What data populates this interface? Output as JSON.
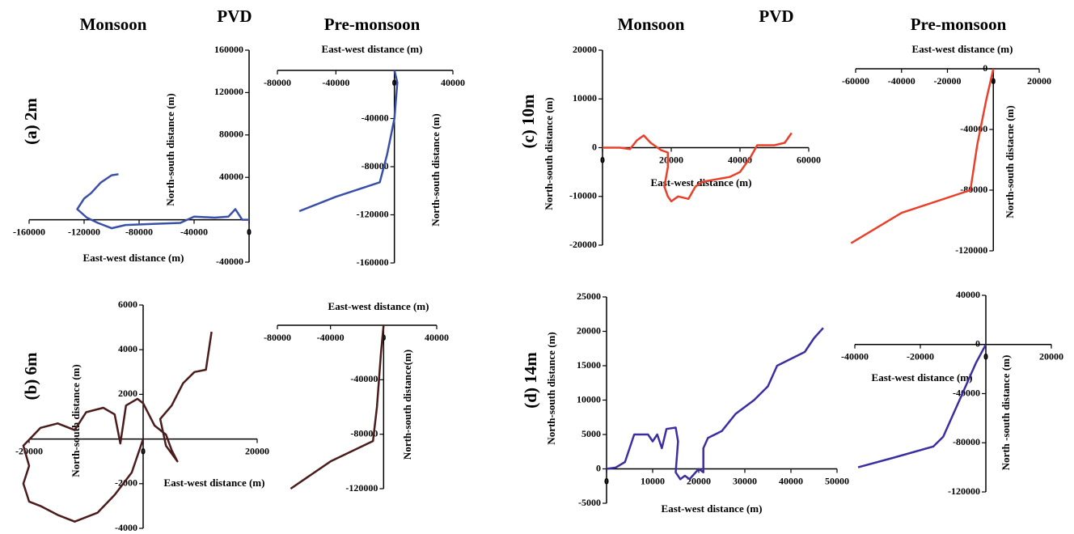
{
  "headers": {
    "left": [
      "Monsoon",
      "PVD",
      "Pre-monsoon"
    ],
    "right": [
      "Monsoon",
      "PVD",
      "Pre-monsoon"
    ]
  },
  "panel_labels": [
    "(a) 2m",
    "(b) 6m",
    "(c) 10m",
    "(d) 14m"
  ],
  "chart_data": [
    {
      "type": "line",
      "xlabel": "East-west distance (m)",
      "ylabel": "North-south distance (m)",
      "color": "#3a4fa8",
      "xlim": [
        -160000,
        0
      ],
      "ylim": [
        -40000,
        160000
      ],
      "xticks": [
        -160000,
        -120000,
        -80000,
        -40000,
        0
      ],
      "yticks": [
        -40000,
        40000,
        80000,
        120000,
        160000
      ],
      "x": [
        0,
        -5000,
        -10000,
        -15000,
        -25000,
        -40000,
        -50000,
        -70000,
        -90000,
        -100000,
        -110000,
        -118000,
        -125000,
        -120000,
        -115000,
        -108000,
        -100000,
        -95000
      ],
      "values": [
        0,
        0,
        10000,
        3000,
        2000,
        3000,
        -3000,
        -4000,
        -5000,
        -8000,
        -3000,
        2000,
        10000,
        20000,
        25000,
        35000,
        42000,
        43000
      ]
    },
    {
      "type": "line",
      "xlabel": "East-west distance (m)",
      "ylabel": "North-south distance (m)",
      "color": "#3a4fa8",
      "xlim": [
        -80000,
        40000
      ],
      "ylim": [
        -160000,
        0
      ],
      "xticks": [
        -80000,
        -40000,
        0,
        40000
      ],
      "yticks": [
        -160000,
        -120000,
        -80000,
        -40000
      ],
      "x": [
        0,
        2000,
        0,
        -5000,
        -10000,
        -40000,
        -65000
      ],
      "values": [
        0,
        -10000,
        -40000,
        -70000,
        -93000,
        -105000,
        -117000
      ]
    },
    {
      "type": "line",
      "xlabel": "East-west distance (m)",
      "ylabel": "North-south distance (m)",
      "color": "#4a1c1c",
      "xlim": [
        -20000,
        20000
      ],
      "ylim": [
        -4000,
        6000
      ],
      "xticks": [
        -20000,
        0,
        20000
      ],
      "yticks": [
        -4000,
        -2000,
        2000,
        4000,
        6000
      ],
      "x": [
        0,
        -2000,
        -5000,
        -8000,
        -12000,
        -15000,
        -18000,
        -20000,
        -21000,
        -20000,
        -21000,
        -18000,
        -15000,
        -12000,
        -10000,
        -7000,
        -5000,
        -4000,
        -3000,
        -1000,
        0,
        2000,
        4000,
        5000,
        6000,
        4000,
        3000,
        5000,
        7000,
        9000,
        11000,
        12000
      ],
      "values": [
        0,
        -1500,
        -2500,
        -3300,
        -3700,
        -3400,
        -3000,
        -2800,
        -2000,
        -1200,
        -300,
        500,
        700,
        400,
        1200,
        1400,
        1100,
        -200,
        1500,
        1800,
        1600,
        600,
        200,
        -500,
        -1000,
        -300,
        900,
        1500,
        2500,
        3000,
        3100,
        4800
      ]
    },
    {
      "type": "line",
      "xlabel": "East-west distance (m)",
      "ylabel": "North-south distance(m)",
      "color": "#4a1c1c",
      "xlim": [
        -80000,
        40000
      ],
      "ylim": [
        -120000,
        0
      ],
      "xticks": [
        -80000,
        -40000,
        0,
        40000
      ],
      "yticks": [
        -120000,
        -80000,
        -40000
      ],
      "x": [
        0,
        -2000,
        -5000,
        -8000,
        -40000,
        -70000
      ],
      "values": [
        0,
        -20000,
        -60000,
        -85000,
        -100000,
        -120000
      ]
    },
    {
      "type": "line",
      "xlabel": "East-west distance (m)",
      "ylabel": "North-south distance (m)",
      "color": "#e8402a",
      "xlim": [
        0,
        60000
      ],
      "ylim": [
        -20000,
        20000
      ],
      "xticks": [
        0,
        20000,
        40000,
        60000
      ],
      "yticks": [
        -20000,
        -10000,
        0,
        10000,
        20000
      ],
      "x": [
        0,
        5000,
        8000,
        10000,
        12000,
        14000,
        17000,
        19000,
        19000,
        18000,
        19000,
        20000,
        22000,
        25000,
        27000,
        29000,
        33000,
        37000,
        40000,
        43000,
        45000,
        50000,
        53000,
        55000
      ],
      "values": [
        0,
        0,
        -300,
        1500,
        2500,
        1000,
        -500,
        -1000,
        -4000,
        -8000,
        -10000,
        -11000,
        -10000,
        -10500,
        -8000,
        -7000,
        -6500,
        -6000,
        -5000,
        -2000,
        500,
        500,
        1000,
        3000
      ]
    },
    {
      "type": "line",
      "xlabel": "East-west distance (m)",
      "ylabel": "North-south distacne (m)",
      "color": "#e8402a",
      "xlim": [
        -60000,
        20000
      ],
      "ylim": [
        -120000,
        0
      ],
      "xticks": [
        -60000,
        -40000,
        -20000,
        0,
        20000
      ],
      "yticks": [
        -120000,
        -80000,
        -40000,
        0
      ],
      "x": [
        0,
        -3000,
        -7000,
        -10000,
        -40000,
        -62000
      ],
      "values": [
        0,
        -20000,
        -50000,
        -80000,
        -95000,
        -115000
      ]
    },
    {
      "type": "line",
      "xlabel": "East-west distance (m)",
      "ylabel": "North-south distance (m)",
      "color": "#3b2fa0",
      "xlim": [
        0,
        50000
      ],
      "ylim": [
        -5000,
        25000
      ],
      "xticks": [
        0,
        10000,
        20000,
        30000,
        40000,
        50000
      ],
      "yticks": [
        -5000,
        0,
        5000,
        10000,
        15000,
        20000,
        25000
      ],
      "x": [
        0,
        2000,
        4000,
        5000,
        6000,
        9000,
        10000,
        11000,
        12000,
        13000,
        15000,
        15500,
        15000,
        16000,
        17000,
        18000,
        20000,
        21000,
        21000,
        22000,
        25000,
        28000,
        32000,
        35000,
        37000,
        40000,
        43000,
        45000,
        47000
      ],
      "values": [
        0,
        200,
        1000,
        3000,
        5000,
        5000,
        4000,
        5000,
        3000,
        5800,
        6000,
        4000,
        -500,
        -1500,
        -1000,
        -1500,
        0,
        -500,
        3000,
        4500,
        5500,
        8000,
        10000,
        12000,
        15000,
        16000,
        17000,
        19000,
        20500
      ]
    },
    {
      "type": "line",
      "xlabel": "East-west distance (m)",
      "ylabel": "North -south distance (m)",
      "color": "#3b2fa0",
      "xlim": [
        -40000,
        20000
      ],
      "ylim": [
        -120000,
        40000
      ],
      "xticks": [
        -40000,
        -20000,
        0,
        20000
      ],
      "yticks": [
        -120000,
        -80000,
        -40000,
        0,
        40000
      ],
      "x": [
        0,
        -3000,
        -8000,
        -13000,
        -16000,
        -28000,
        -39000
      ],
      "values": [
        0,
        -15000,
        -45000,
        -75000,
        -83000,
        -92000,
        -100000
      ]
    }
  ]
}
